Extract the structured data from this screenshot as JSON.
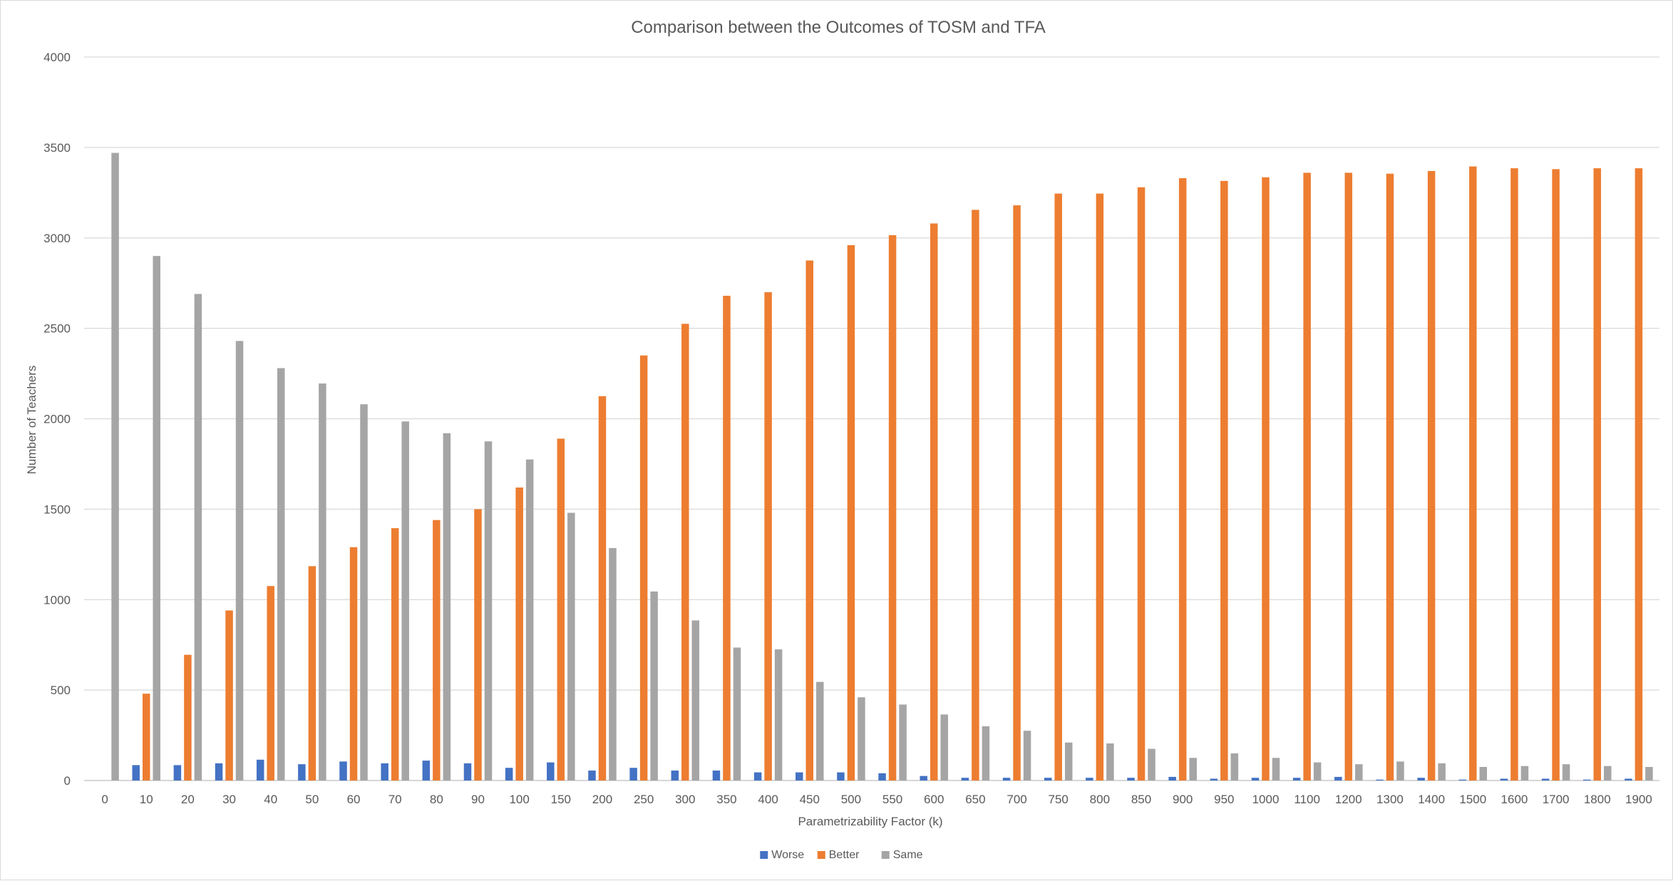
{
  "chart_data": {
    "type": "bar",
    "title": "Comparison between the Outcomes of TOSM and TFA",
    "xlabel": "Parametrizability Factor (k)",
    "ylabel": "Number of Teachers",
    "ylim": [
      0,
      4000
    ],
    "yticks": [
      "0",
      "500",
      "1000",
      "1500",
      "2000",
      "2500",
      "3000",
      "3500",
      "4000"
    ],
    "grid": true,
    "legend_position": "bottom",
    "categories": [
      "0",
      "10",
      "20",
      "30",
      "40",
      "50",
      "60",
      "70",
      "80",
      "90",
      "100",
      "150",
      "200",
      "250",
      "300",
      "350",
      "400",
      "450",
      "500",
      "550",
      "600",
      "650",
      "700",
      "750",
      "800",
      "850",
      "900",
      "950",
      "1000",
      "1100",
      "1200",
      "1300",
      "1400",
      "1500",
      "1600",
      "1700",
      "1800",
      "1900"
    ],
    "series": [
      {
        "name": "Worse",
        "color": "#4472C4",
        "values": [
          0,
          85,
          85,
          95,
          115,
          90,
          105,
          95,
          110,
          95,
          70,
          100,
          55,
          70,
          55,
          55,
          45,
          45,
          45,
          40,
          25,
          15,
          15,
          15,
          15,
          15,
          20,
          10,
          15,
          15,
          20,
          5,
          15,
          5,
          10,
          10,
          5,
          10
        ]
      },
      {
        "name": "Better",
        "color": "#ED7D31",
        "values": [
          0,
          480,
          695,
          940,
          1075,
          1185,
          1290,
          1395,
          1440,
          1500,
          1620,
          1890,
          2125,
          2350,
          2525,
          2680,
          2700,
          2875,
          2960,
          3015,
          3080,
          3155,
          3180,
          3245,
          3245,
          3280,
          3330,
          3315,
          3335,
          3360,
          3360,
          3355,
          3370,
          3395,
          3385,
          3380,
          3385,
          3385
        ]
      },
      {
        "name": "Same",
        "color": "#A5A5A5",
        "values": [
          3470,
          2900,
          2690,
          2430,
          2280,
          2195,
          2080,
          1985,
          1920,
          1875,
          1775,
          1480,
          1285,
          1045,
          885,
          735,
          725,
          545,
          460,
          420,
          365,
          300,
          275,
          210,
          205,
          175,
          125,
          150,
          125,
          100,
          90,
          105,
          95,
          75,
          80,
          90,
          80,
          75
        ]
      }
    ]
  }
}
